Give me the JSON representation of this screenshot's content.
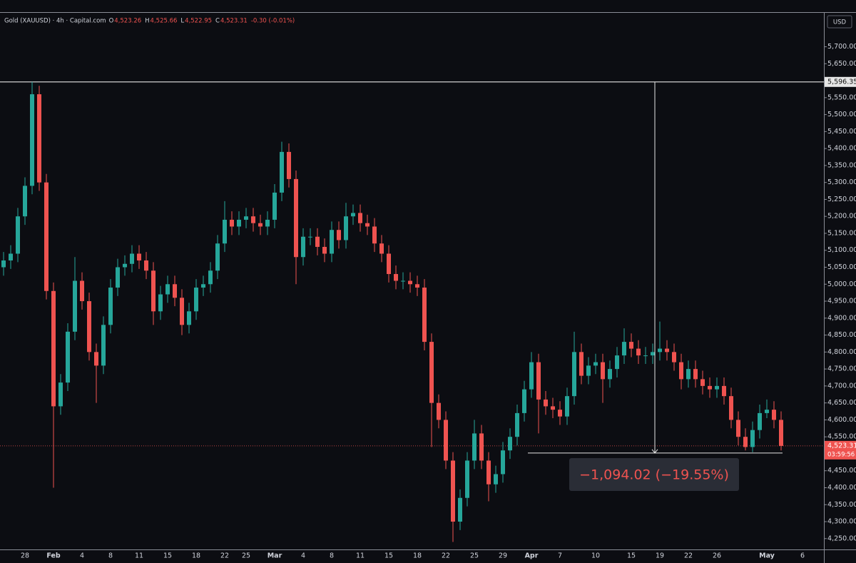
{
  "chart_data": {
    "type": "candlestick",
    "header": {
      "symbol": "Gold (XAUUSD) · 4h · Capital.com",
      "ohlc": [
        {
          "key": "O",
          "value": "4,523.26"
        },
        {
          "key": "H",
          "value": "4,525.66"
        },
        {
          "key": "L",
          "value": "4,522.95"
        },
        {
          "key": "C",
          "value": "4,523.31"
        }
      ],
      "change": "-0.30 (-0.01%)"
    },
    "currency": "USD",
    "up_color": "#26a69a",
    "down_color": "#ef5350",
    "categories": [
      null,
      null,
      null,
      "28",
      null,
      null,
      null,
      "Feb",
      null,
      null,
      null,
      "4",
      null,
      null,
      null,
      "8",
      null,
      null,
      null,
      "11",
      null,
      null,
      null,
      "15",
      null,
      null,
      null,
      "18",
      null,
      null,
      null,
      "22",
      null,
      null,
      "25",
      null,
      null,
      null,
      "Mar",
      null,
      null,
      null,
      "4",
      null,
      null,
      null,
      "8",
      null,
      null,
      null,
      "11",
      null,
      null,
      null,
      "15",
      null,
      null,
      null,
      "18",
      null,
      null,
      null,
      "22",
      null,
      null,
      null,
      "25",
      null,
      null,
      null,
      "29",
      null,
      null,
      null,
      "Apr",
      null,
      null,
      null,
      "7",
      null,
      null,
      null,
      null,
      "10",
      null,
      null,
      null,
      null,
      "15",
      null,
      null,
      null,
      "19",
      null,
      null,
      null,
      "22",
      null,
      null,
      null,
      "26",
      null,
      null,
      null,
      null,
      null,
      null,
      "May",
      null,
      null,
      null,
      null,
      "6"
    ],
    "open": [
      5050,
      5070,
      5090,
      5200,
      5290,
      5560,
      5300,
      4980,
      4640,
      4710,
      4860,
      5010,
      4950,
      4800,
      4760,
      4880,
      4990,
      5050,
      5060,
      5090,
      5070,
      5040,
      4920,
      4970,
      5000,
      4960,
      4880,
      4920,
      4990,
      5000,
      5040,
      5120,
      5190,
      5170,
      5190,
      5200,
      5180,
      5170,
      5190,
      5270,
      5390,
      5310,
      5080,
      5140,
      5140,
      5110,
      5090,
      5160,
      5130,
      5200,
      5210,
      5180,
      5170,
      5120,
      5090,
      5030,
      5010,
      5010,
      5000,
      4990,
      4830,
      4650,
      4600,
      4480,
      4300,
      4370,
      4480,
      4560,
      4480,
      4410,
      4440,
      4510,
      4550,
      4620,
      4690,
      4770,
      4660,
      4640,
      4630,
      4610,
      4670,
      4800,
      4730,
      4760,
      4770,
      4720,
      4750,
      4790,
      4830,
      4810,
      4790,
      4790,
      4800,
      4810,
      4800,
      4770,
      4720,
      4750,
      4720,
      4700,
      4690,
      4700,
      4670,
      4600,
      4550,
      4520,
      4570,
      4620,
      4630,
      4600,
      null,
      null,
      null
    ],
    "high": [
      5095,
      5115,
      5225,
      5315,
      5596.35,
      5585,
      5325,
      5005,
      4735,
      4885,
      5080,
      5035,
      4975,
      4825,
      4905,
      5015,
      5075,
      5085,
      5115,
      5115,
      5095,
      5065,
      4995,
      5025,
      5025,
      4985,
      4945,
      5015,
      5025,
      5065,
      5145,
      5245,
      5215,
      5215,
      5225,
      5225,
      5205,
      5215,
      5295,
      5420,
      5415,
      5335,
      5165,
      5165,
      5165,
      5135,
      5185,
      5185,
      5240,
      5235,
      5235,
      5205,
      5195,
      5145,
      5115,
      5055,
      5035,
      5035,
      5025,
      5015,
      4855,
      4675,
      4625,
      4505,
      4395,
      4505,
      4600,
      4585,
      4505,
      4465,
      4535,
      4575,
      4645,
      4715,
      4800,
      4795,
      4685,
      4665,
      4655,
      4695,
      4860,
      4825,
      4785,
      4795,
      4795,
      4775,
      4815,
      4870,
      4855,
      4835,
      4815,
      4825,
      4890,
      4835,
      4825,
      4795,
      4775,
      4775,
      4745,
      4725,
      4725,
      4725,
      4695,
      4625,
      4575,
      4595,
      4645,
      4660,
      4655,
      4625,
      null,
      null,
      null
    ],
    "low": [
      5025,
      5045,
      5065,
      5175,
      5265,
      5275,
      4955,
      4400,
      4615,
      4685,
      4835,
      4925,
      4775,
      4650,
      4735,
      4855,
      4965,
      5025,
      5035,
      5045,
      5015,
      4880,
      4895,
      4945,
      4935,
      4850,
      4855,
      4895,
      4965,
      4975,
      5015,
      5095,
      5145,
      5145,
      5165,
      5155,
      5145,
      5145,
      5165,
      5245,
      5285,
      5000,
      5055,
      5115,
      5085,
      5065,
      5065,
      5105,
      5105,
      5175,
      5155,
      5145,
      5095,
      5065,
      5005,
      4985,
      4985,
      4975,
      4965,
      4805,
      4520,
      4575,
      4455,
      4240,
      4275,
      4345,
      4455,
      4455,
      4360,
      4385,
      4415,
      4485,
      4525,
      4595,
      4665,
      4560,
      4615,
      4605,
      4585,
      4585,
      4645,
      4705,
      4705,
      4735,
      4650,
      4695,
      4725,
      4765,
      4785,
      4765,
      4765,
      4765,
      4775,
      4775,
      4745,
      4690,
      4695,
      4695,
      4675,
      4665,
      4665,
      4645,
      4575,
      4525,
      4510,
      4505,
      4545,
      4605,
      4575,
      4510,
      null,
      null,
      null
    ],
    "close": [
      5070,
      5090,
      5200,
      5290,
      5560,
      5300,
      4980,
      4640,
      4710,
      4860,
      5010,
      4950,
      4800,
      4760,
      4880,
      4990,
      5050,
      5060,
      5090,
      5070,
      5040,
      4920,
      4970,
      5000,
      4960,
      4880,
      4920,
      4990,
      5000,
      5040,
      5120,
      5190,
      5170,
      5190,
      5200,
      5180,
      5170,
      5190,
      5270,
      5390,
      5310,
      5080,
      5140,
      5140,
      5110,
      5090,
      5160,
      5130,
      5200,
      5210,
      5180,
      5170,
      5120,
      5090,
      5030,
      5010,
      5010,
      5000,
      4990,
      4830,
      4650,
      4600,
      4480,
      4300,
      4370,
      4480,
      4560,
      4480,
      4410,
      4440,
      4510,
      4550,
      4620,
      4690,
      4770,
      4660,
      4640,
      4630,
      4610,
      4670,
      4800,
      4730,
      4760,
      4770,
      4720,
      4750,
      4790,
      4830,
      4810,
      4790,
      4790,
      4800,
      4810,
      4800,
      4770,
      4720,
      4750,
      4720,
      4700,
      4690,
      4700,
      4670,
      4600,
      4550,
      4520,
      4570,
      4620,
      4630,
      4600,
      4523.31,
      null,
      null,
      null
    ],
    "ylim": [
      4218,
      5800
    ],
    "yticks": [
      {
        "value": 4250,
        "label": "4,250.00"
      },
      {
        "value": 4300,
        "label": "4,300.00"
      },
      {
        "value": 4350,
        "label": "4,350.00"
      },
      {
        "value": 4400,
        "label": "4,400.00"
      },
      {
        "value": 4450,
        "label": "4,450.00"
      },
      {
        "value": 4500,
        "label": "4,500.00"
      },
      {
        "value": 4550,
        "label": "4,550.00"
      },
      {
        "value": 4600,
        "label": "4,600.00"
      },
      {
        "value": 4650,
        "label": "4,650.00"
      },
      {
        "value": 4700,
        "label": "4,700.00"
      },
      {
        "value": 4750,
        "label": "4,750.00"
      },
      {
        "value": 4800,
        "label": "4,800.00"
      },
      {
        "value": 4850,
        "label": "4,850.00"
      },
      {
        "value": 4900,
        "label": "4,900.00"
      },
      {
        "value": 4950,
        "label": "4,950.00"
      },
      {
        "value": 5000,
        "label": "5,000.00"
      },
      {
        "value": 5050,
        "label": "5,050.00"
      },
      {
        "value": 5100,
        "label": "5,100.00"
      },
      {
        "value": 5150,
        "label": "5,150.00"
      },
      {
        "value": 5200,
        "label": "5,200.00"
      },
      {
        "value": 5250,
        "label": "5,250.00"
      },
      {
        "value": 5300,
        "label": "5,300.00"
      },
      {
        "value": 5350,
        "label": "5,350.00"
      },
      {
        "value": 5400,
        "label": "5,400.00"
      },
      {
        "value": 5450,
        "label": "5,450.00"
      },
      {
        "value": 5500,
        "label": "5,500.00"
      },
      {
        "value": 5550,
        "label": "5,550.00"
      },
      {
        "value": 5650,
        "label": "5,650.00"
      },
      {
        "value": 5700,
        "label": "5,700.00"
      }
    ],
    "price_line": {
      "value": 5596.35,
      "label": "5,596.35"
    },
    "last_price": {
      "value": 4523.31,
      "label": "4,523.31",
      "countdown": "03:59:56"
    },
    "measure": {
      "value": -1094.02,
      "label": "−1,094.02 (−19.55%)"
    }
  }
}
